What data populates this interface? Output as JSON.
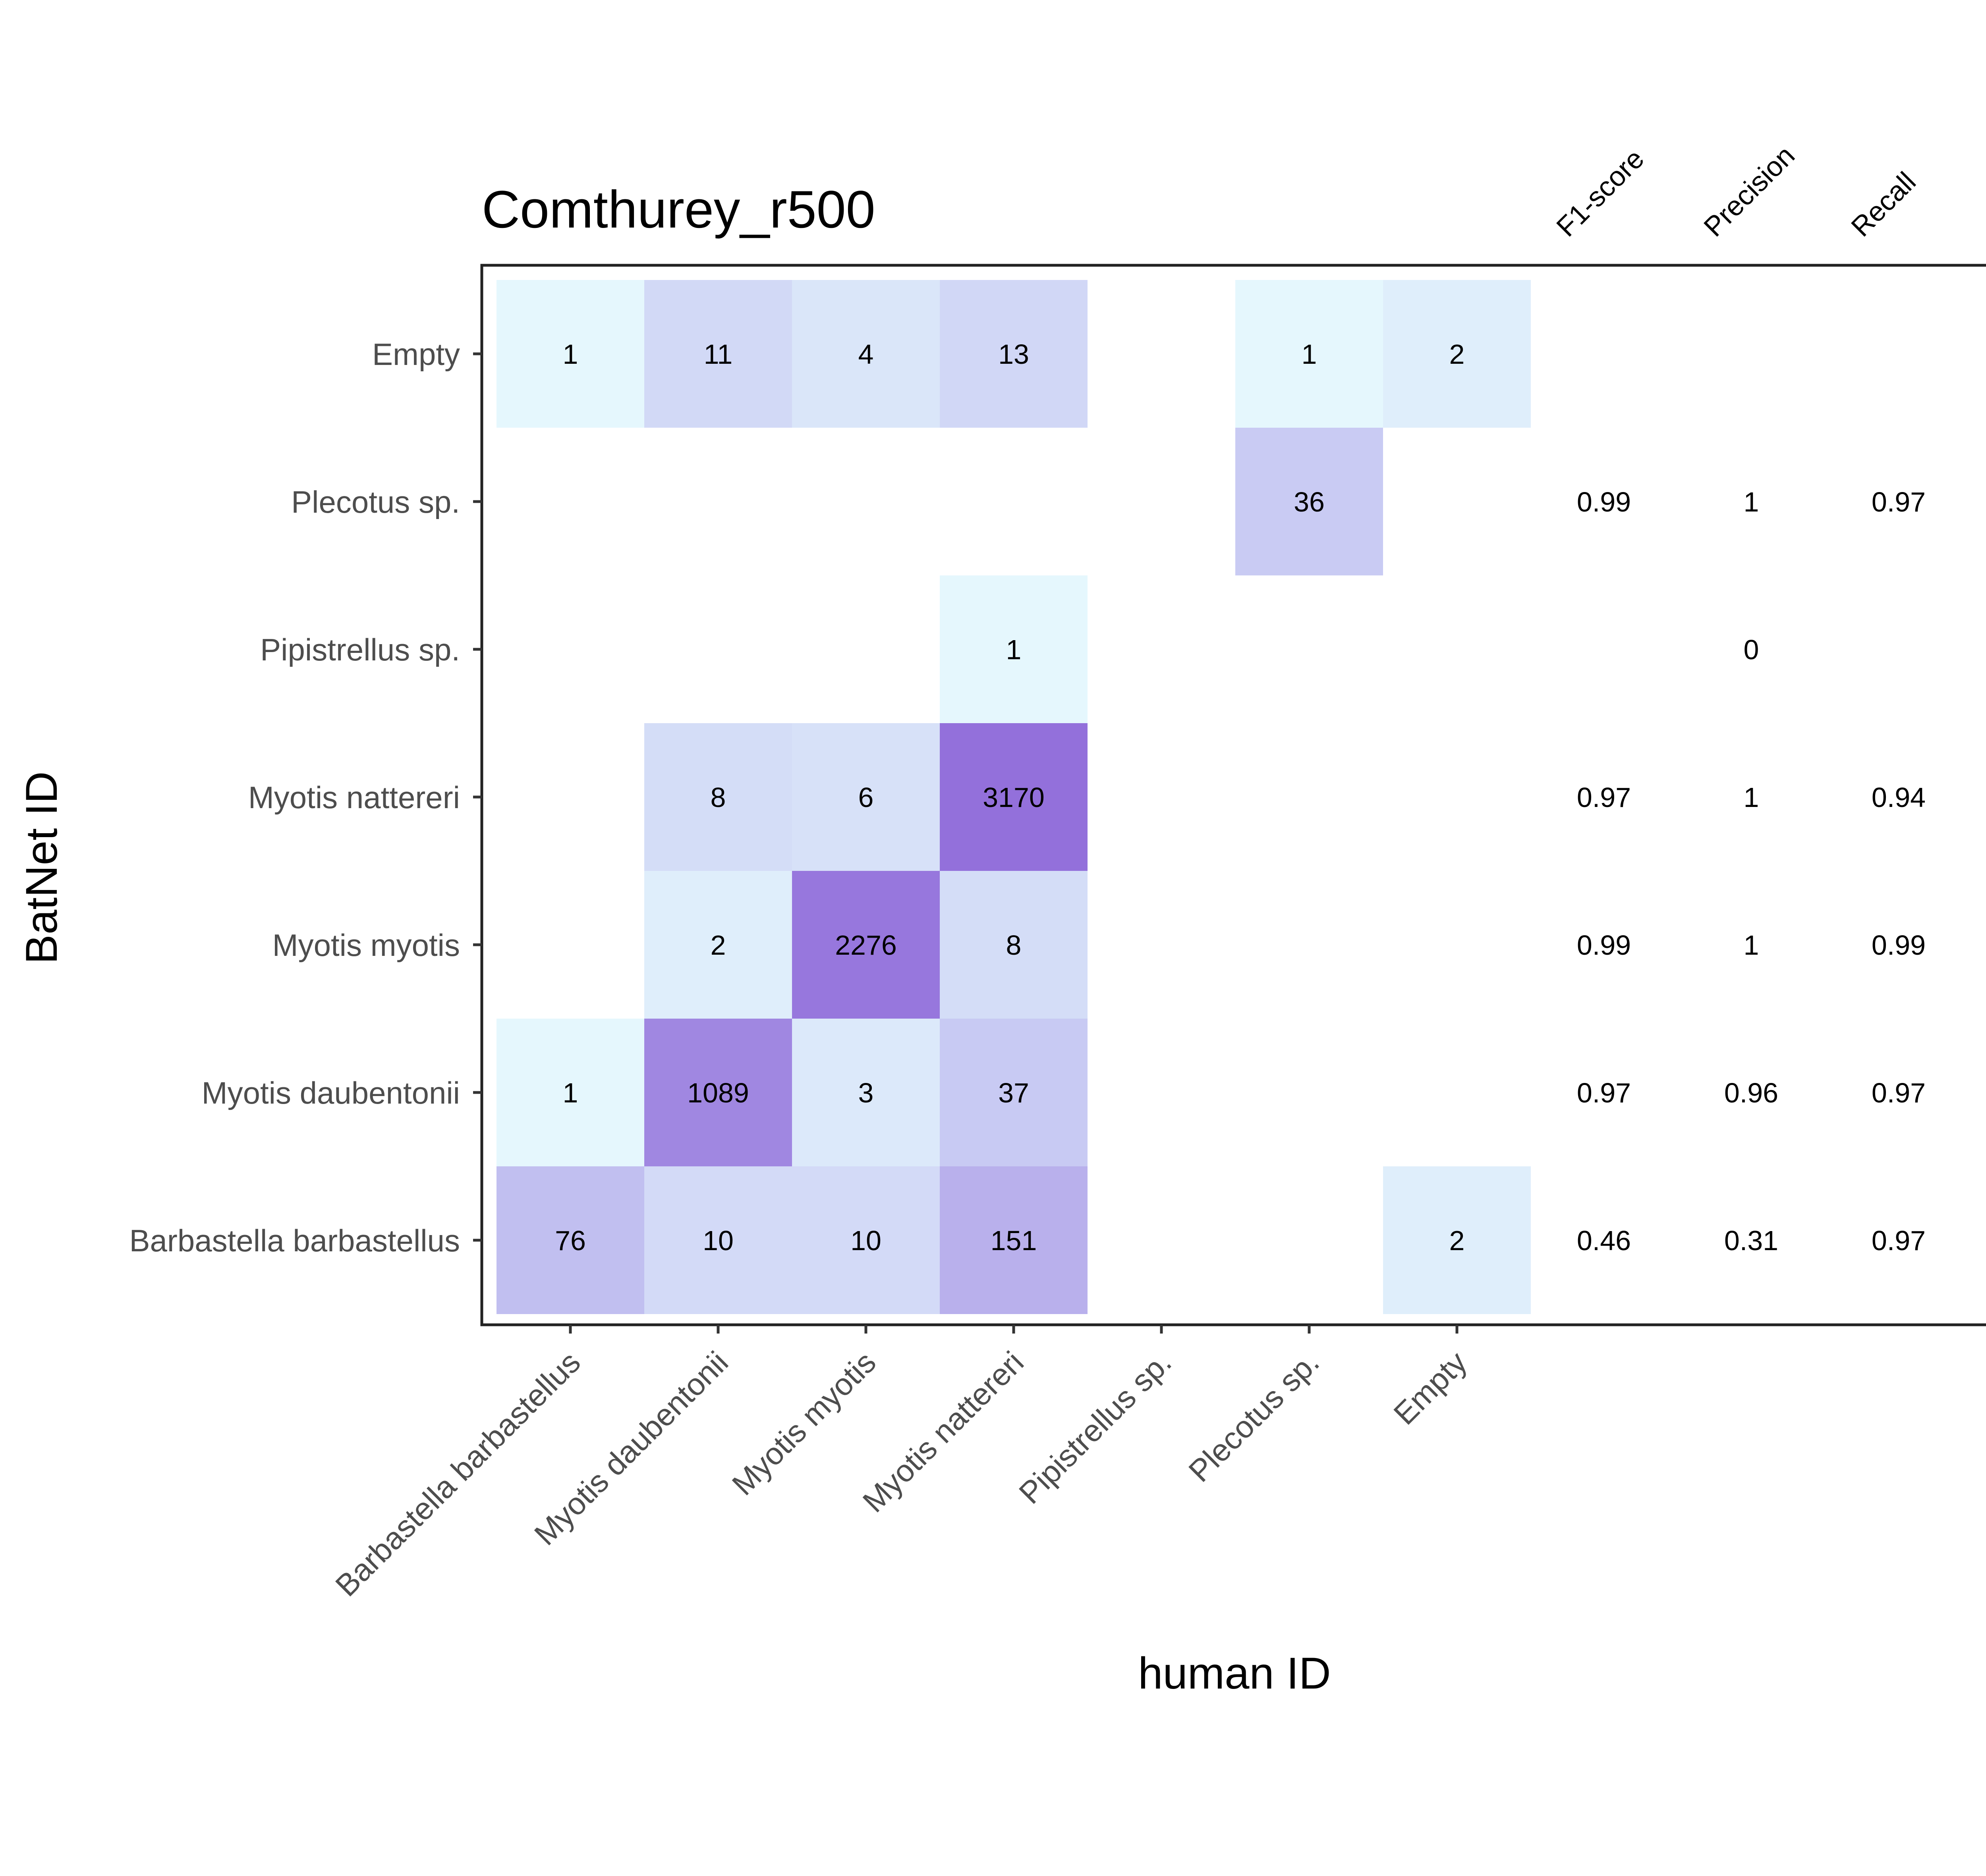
{
  "chart_data": {
    "type": "heatmap",
    "title": "Comthurey_r500",
    "xlabel": "human ID",
    "ylabel": "BatNet ID",
    "x_categories": [
      "Barbastella barbastellus",
      "Myotis daubentonii",
      "Myotis myotis",
      "Myotis nattereri",
      "Pipistrellus sp.",
      "Plecotus sp.",
      "Empty"
    ],
    "y_categories": [
      "Empty",
      "Plecotus sp.",
      "Pipistrellus sp.",
      "Myotis nattereri",
      "Myotis myotis",
      "Myotis daubentonii",
      "Barbastella barbastellus"
    ],
    "matrix": [
      [
        1,
        11,
        4,
        13,
        null,
        1,
        2
      ],
      [
        null,
        null,
        null,
        null,
        null,
        36,
        null
      ],
      [
        null,
        null,
        null,
        1,
        null,
        null,
        null
      ],
      [
        null,
        8,
        6,
        3170,
        null,
        null,
        null
      ],
      [
        null,
        2,
        2276,
        8,
        null,
        null,
        null
      ],
      [
        1,
        1089,
        3,
        37,
        null,
        null,
        null
      ],
      [
        76,
        10,
        10,
        151,
        null,
        null,
        2
      ]
    ],
    "metric_headers": [
      "F1-score",
      "Precision",
      "Recall"
    ],
    "metrics": [
      [
        null,
        null,
        null
      ],
      [
        "0.99",
        "1",
        "0.97"
      ],
      [
        null,
        "0",
        null
      ],
      [
        "0.97",
        "1",
        "0.94"
      ],
      [
        "0.99",
        "1",
        "0.99"
      ],
      [
        "0.97",
        "0.96",
        "0.97"
      ],
      [
        "0.46",
        "0.31",
        "0.97"
      ]
    ],
    "color_scale": {
      "low": "#e5f7fd",
      "mid": "#c5c5f2",
      "high": "#9370db"
    },
    "panel_border_color": "#222222",
    "grid": false,
    "legend": "none"
  }
}
